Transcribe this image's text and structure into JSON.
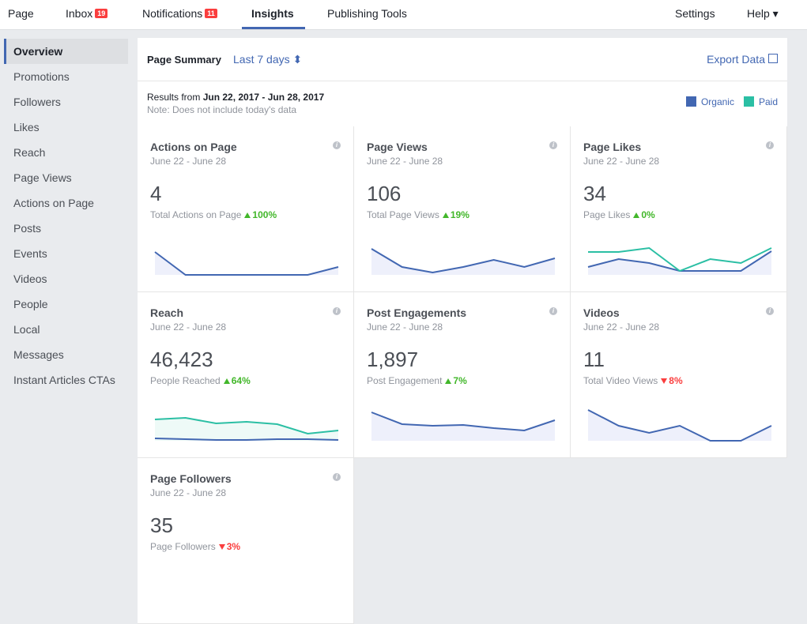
{
  "nav": {
    "tabs": [
      {
        "label": "Page"
      },
      {
        "label": "Inbox",
        "badge": 19
      },
      {
        "label": "Notifications",
        "badge": 11
      },
      {
        "label": "Insights",
        "active": true
      },
      {
        "label": "Publishing Tools"
      }
    ],
    "right": [
      {
        "label": "Settings"
      },
      {
        "label": "Help ▾"
      }
    ]
  },
  "sidebar": {
    "items": [
      "Overview",
      "Promotions",
      "Followers",
      "Likes",
      "Reach",
      "Page Views",
      "Actions on Page",
      "Posts",
      "Events",
      "Videos",
      "People",
      "Local",
      "Messages",
      "Instant Articles CTAs"
    ],
    "active": 0
  },
  "summary": {
    "title": "Page Summary",
    "range": "Last 7 days ⬍",
    "export": "Export Data",
    "results_prefix": "Results from",
    "results_range": "Jun 22, 2017 - Jun 28, 2017",
    "note": "Note: Does not include today's data",
    "legend": [
      {
        "name": "Organic",
        "color": "#4267b2"
      },
      {
        "name": "Paid",
        "color": "#2bbfa4"
      }
    ]
  },
  "cards": [
    {
      "title": "Actions on Page",
      "dates": "June 22 - June 28",
      "total": "4",
      "label": "Total Actions on Page",
      "change": "100%",
      "direction": "up",
      "series": [
        {
          "color": "#4267b2",
          "fill": "#eef0fb",
          "values": [
            29,
            0,
            0,
            0,
            0,
            0,
            10
          ]
        }
      ]
    },
    {
      "title": "Page Views",
      "dates": "June 22 - June 28",
      "total": "106",
      "label": "Total Page Views",
      "change": "19%",
      "direction": "up",
      "series": [
        {
          "color": "#4267b2",
          "fill": "#eef0fb",
          "values": [
            33,
            10,
            3,
            10,
            19,
            10,
            21
          ]
        }
      ]
    },
    {
      "title": "Page Likes",
      "dates": "June 22 - June 28",
      "total": "34",
      "label": "Page Likes",
      "change": "0%",
      "direction": "up",
      "series": [
        {
          "color": "#4267b2",
          "fill": "#eef0fb",
          "values": [
            10,
            20,
            15,
            5,
            5,
            5,
            30
          ]
        },
        {
          "color": "#2bbfa4",
          "values": [
            29,
            29,
            34,
            5,
            20,
            15,
            34
          ]
        }
      ]
    },
    {
      "title": "Reach",
      "dates": "June 22 - June 28",
      "total": "46,423",
      "label": "People Reached",
      "change": "64%",
      "direction": "up",
      "series": [
        {
          "color": "#2bbfa4",
          "fill": "#eefaf7",
          "values": [
            27,
            29,
            22,
            24,
            21,
            9,
            13
          ]
        },
        {
          "color": "#4267b2",
          "values": [
            3,
            2,
            1,
            1,
            2,
            2,
            1
          ]
        }
      ]
    },
    {
      "title": "Post Engagements",
      "dates": "June 22 - June 28",
      "total": "1,897",
      "label": "Post Engagement",
      "change": "7%",
      "direction": "up",
      "series": [
        {
          "color": "#4267b2",
          "fill": "#eef0fb",
          "values": [
            36,
            21,
            19,
            20,
            16,
            13,
            26
          ]
        }
      ]
    },
    {
      "title": "Videos",
      "dates": "June 22 - June 28",
      "total": "11",
      "label": "Total Video Views",
      "change": "8%",
      "direction": "down",
      "series": [
        {
          "color": "#4267b2",
          "fill": "#eef0fb",
          "values": [
            39,
            19,
            10,
            19,
            0,
            0,
            19
          ]
        }
      ]
    },
    {
      "title": "Page Followers",
      "dates": "June 22 - June 28",
      "total": "35",
      "label": "Page Followers",
      "change": "3%",
      "direction": "down",
      "series": []
    }
  ]
}
